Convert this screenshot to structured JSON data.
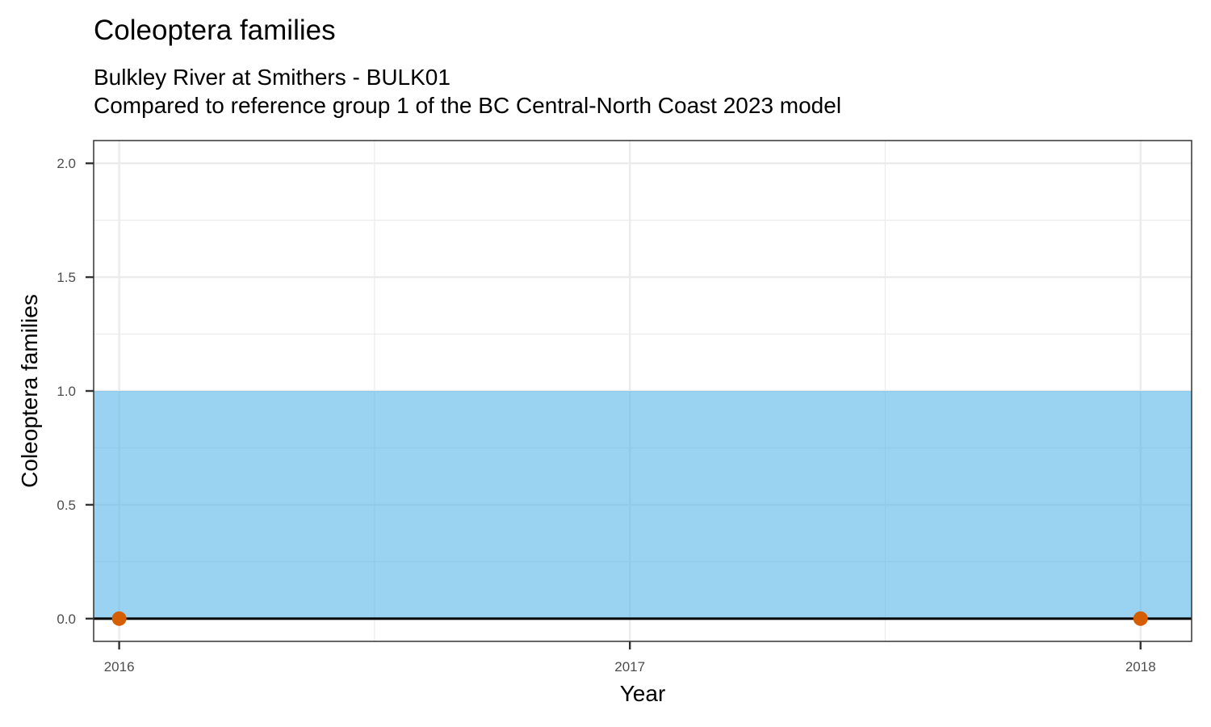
{
  "chart_data": {
    "type": "area",
    "title": "Coleoptera families",
    "subtitle_lines": [
      "Bulkley River at Smithers - BULK01",
      "Compared to reference group 1 of the BC Central-North Coast 2023 model"
    ],
    "xlabel": "Year",
    "ylabel": "Coleoptera families",
    "xlim": [
      2015.95,
      2018.1
    ],
    "ylim": [
      -0.1,
      2.1
    ],
    "x_ticks": [
      2016,
      2017,
      2018
    ],
    "x_tick_labels": [
      "2016",
      "2017",
      "2018"
    ],
    "y_ticks": [
      0.0,
      0.5,
      1.0,
      1.5,
      2.0
    ],
    "y_tick_labels": [
      "0.0",
      "0.5",
      "1.0",
      "1.5",
      "2.0"
    ],
    "reference_band": {
      "ymin": 0,
      "ymax": 1,
      "color": "#56B4E9"
    },
    "reference_line": {
      "y": 0,
      "color": "#000000"
    },
    "series": [
      {
        "x": [
          2016,
          2018
        ],
        "y": [
          0,
          0
        ],
        "color": "#D55E00"
      }
    ],
    "grid": true,
    "legend": "none"
  }
}
